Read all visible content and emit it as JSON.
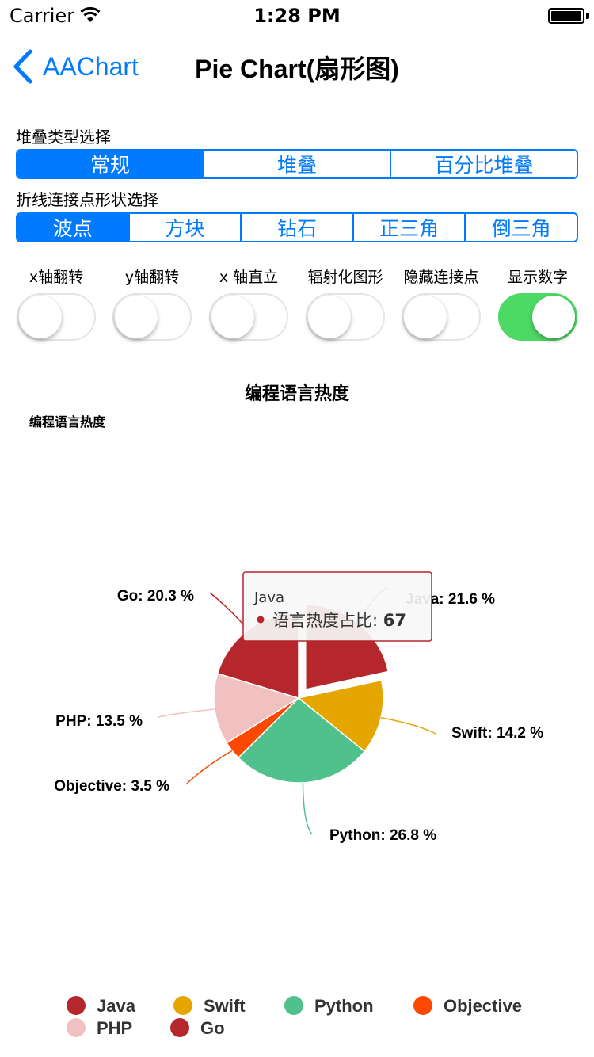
{
  "status_bar": {
    "carrier": "Carrier",
    "time": "1:28 PM"
  },
  "nav": {
    "back_label": "AAChart",
    "title": "Pie Chart(扇形图)"
  },
  "stacking": {
    "label": "堆叠类型选择",
    "options": [
      "常规",
      "堆叠",
      "百分比堆叠"
    ],
    "selected": 0
  },
  "marker_shape": {
    "label": "折线连接点形状选择",
    "options": [
      "波点",
      "方块",
      "钻石",
      "正三角",
      "倒三角"
    ],
    "selected": 0
  },
  "switches": [
    {
      "label": "x轴翻转",
      "on": false
    },
    {
      "label": "y轴翻转",
      "on": false
    },
    {
      "label": "x 轴直立",
      "on": false
    },
    {
      "label": "辐射化图形",
      "on": false
    },
    {
      "label": "隐藏连接点",
      "on": false
    },
    {
      "label": "显示数字",
      "on": true
    }
  ],
  "colors": {
    "accent": "#007aff",
    "switch_on": "#4cd964"
  },
  "chart_data": {
    "type": "pie",
    "title": "编程语言热度",
    "subtitle": "编程语言热度",
    "series_name": "语言热度占比",
    "slices": [
      {
        "name": "Java",
        "value": 67,
        "percent": 21.6,
        "color": "#b5272d",
        "label": "Java: 21.6 %",
        "sliced": true
      },
      {
        "name": "Swift",
        "value": 44,
        "percent": 14.2,
        "color": "#e5a600",
        "label": "Swift: 14.2 %"
      },
      {
        "name": "Python",
        "value": 83,
        "percent": 26.8,
        "color": "#50c18d",
        "label": "Python: 26.8 %"
      },
      {
        "name": "Objective",
        "value": 11,
        "percent": 3.5,
        "color": "#fd4800",
        "label": "Objective: 3.5 %"
      },
      {
        "name": "PHP",
        "value": 42,
        "percent": 13.5,
        "color": "#f1c1c1",
        "label": "PHP: 13.5 %"
      },
      {
        "name": "Go",
        "value": 63,
        "percent": 20.3,
        "color": "#b5272d",
        "label": "Go: 20.3 %"
      }
    ],
    "tooltip": {
      "title": "Java",
      "series_label": "语言热度占比: ",
      "value": "67"
    },
    "legend_position": "bottom-center"
  }
}
